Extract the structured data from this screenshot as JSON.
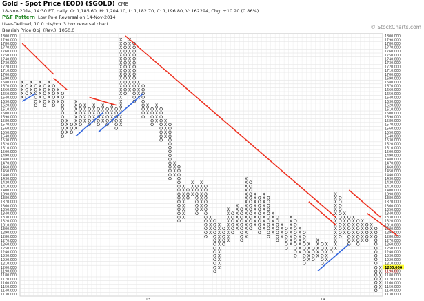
{
  "header": {
    "title": "Gold - Spot Price (EOD) ($GOLD)",
    "exchange": "CME",
    "quote": "18-Nov-2014, 14:30 ET, daily, O: 1,185.60, H: 1,204.10, L: 1,182.70, C: 1,196.80, V: 162294, Chg: +10.20 (0.86%)",
    "pattern_tag": "P&F Pattern",
    "pattern_desc": "Low Pole Reversal on 14-Nov-2014",
    "settings": "User-Defined, 10.0 pts/box 3 box reversal chart",
    "objective": "Bearish Price Obj. (Rev.): 1050.0"
  },
  "watermark": "© StockCharts.com",
  "chart_data": {
    "type": "point-and-figure",
    "box_size": 10,
    "reversal": 3,
    "ylim": [
      1130,
      1800
    ],
    "grid": true,
    "y_ticks": [
      1800,
      1790,
      1780,
      1770,
      1760,
      1750,
      1740,
      1730,
      1720,
      1710,
      1700,
      1690,
      1680,
      1670,
      1660,
      1650,
      1640,
      1630,
      1620,
      1610,
      1600,
      1590,
      1580,
      1570,
      1560,
      1550,
      1540,
      1530,
      1520,
      1510,
      1500,
      1490,
      1480,
      1470,
      1460,
      1450,
      1440,
      1430,
      1420,
      1410,
      1400,
      1390,
      1380,
      1370,
      1360,
      1350,
      1340,
      1330,
      1320,
      1310,
      1300,
      1290,
      1280,
      1270,
      1260,
      1250,
      1240,
      1230,
      1220,
      1210,
      1200,
      1190,
      1180,
      1170,
      1160,
      1150,
      1140,
      1130
    ],
    "highlight_price": 1200.0,
    "highlight_label": "1200.000",
    "last_price_label": "1196.80",
    "x_labels": [
      {
        "label": "13",
        "col": 28
      },
      {
        "label": "14",
        "col": 67
      }
    ],
    "columns": [
      {
        "type": "X",
        "from": 1640,
        "to": 1680
      },
      {
        "type": "O",
        "from": 1670,
        "to": 1640
      },
      {
        "type": "X",
        "from": 1650,
        "to": 1680
      },
      {
        "type": "O",
        "from": 1670,
        "to": 1620
      },
      {
        "type": "X",
        "from": 1630,
        "to": 1680
      },
      {
        "type": "O",
        "from": 1670,
        "to": 1620
      },
      {
        "type": "X",
        "from": 1630,
        "to": 1680
      },
      {
        "type": "O",
        "from": 1670,
        "to": 1620
      },
      {
        "type": "X",
        "from": 1630,
        "to": 1660
      },
      {
        "type": "O",
        "from": 1650,
        "to": 1540
      },
      {
        "type": "X",
        "from": 1550,
        "to": 1580
      },
      {
        "type": "O",
        "from": 1570,
        "to": 1550
      },
      {
        "type": "X",
        "from": 1560,
        "to": 1630
      },
      {
        "type": "O",
        "from": 1620,
        "to": 1570
      },
      {
        "type": "X",
        "from": 1580,
        "to": 1620
      },
      {
        "type": "O",
        "from": 1610,
        "to": 1570
      },
      {
        "type": "X",
        "from": 1580,
        "to": 1620
      },
      {
        "type": "O",
        "from": 1610,
        "to": 1570
      },
      {
        "type": "X",
        "from": 1580,
        "to": 1620
      },
      {
        "type": "O",
        "from": 1610,
        "to": 1570
      },
      {
        "type": "X",
        "from": 1580,
        "to": 1620
      },
      {
        "type": "O",
        "from": 1610,
        "to": 1560
      },
      {
        "type": "X",
        "from": 1570,
        "to": 1790
      },
      {
        "type": "O",
        "from": 1780,
        "to": 1650
      },
      {
        "type": "X",
        "from": 1660,
        "to": 1790
      },
      {
        "type": "O",
        "from": 1780,
        "to": 1630
      },
      {
        "type": "X",
        "from": 1640,
        "to": 1680
      },
      {
        "type": "O",
        "from": 1670,
        "to": 1590
      },
      {
        "type": "X",
        "from": 1600,
        "to": 1620
      },
      {
        "type": "O",
        "from": 1610,
        "to": 1570
      },
      {
        "type": "X",
        "from": 1580,
        "to": 1620
      },
      {
        "type": "O",
        "from": 1610,
        "to": 1530
      },
      {
        "type": "X",
        "from": 1540,
        "to": 1580
      },
      {
        "type": "O",
        "from": 1570,
        "to": 1430
      },
      {
        "type": "X",
        "from": 1440,
        "to": 1470
      },
      {
        "type": "O",
        "from": 1460,
        "to": 1320
      },
      {
        "type": "X",
        "from": 1330,
        "to": 1410
      },
      {
        "type": "O",
        "from": 1400,
        "to": 1380
      },
      {
        "type": "X",
        "from": 1390,
        "to": 1420
      },
      {
        "type": "O",
        "from": 1410,
        "to": 1340
      },
      {
        "type": "X",
        "from": 1350,
        "to": 1420
      },
      {
        "type": "O",
        "from": 1410,
        "to": 1280
      },
      {
        "type": "X",
        "from": 1290,
        "to": 1330
      },
      {
        "type": "O",
        "from": 1320,
        "to": 1190
      },
      {
        "type": "X",
        "from": 1200,
        "to": 1310
      },
      {
        "type": "O",
        "from": 1300,
        "to": 1260
      },
      {
        "type": "X",
        "from": 1270,
        "to": 1350
      },
      {
        "type": "O",
        "from": 1340,
        "to": 1290
      },
      {
        "type": "X",
        "from": 1300,
        "to": 1360
      },
      {
        "type": "O",
        "from": 1350,
        "to": 1270
      },
      {
        "type": "X",
        "from": 1280,
        "to": 1430
      },
      {
        "type": "O",
        "from": 1420,
        "to": 1300
      },
      {
        "type": "X",
        "from": 1310,
        "to": 1390
      },
      {
        "type": "O",
        "from": 1380,
        "to": 1290
      },
      {
        "type": "X",
        "from": 1300,
        "to": 1390
      },
      {
        "type": "O",
        "from": 1380,
        "to": 1280
      },
      {
        "type": "X",
        "from": 1290,
        "to": 1340
      },
      {
        "type": "O",
        "from": 1330,
        "to": 1270
      },
      {
        "type": "X",
        "from": 1280,
        "to": 1310
      },
      {
        "type": "O",
        "from": 1300,
        "to": 1250
      },
      {
        "type": "X",
        "from": 1260,
        "to": 1330
      },
      {
        "type": "O",
        "from": 1320,
        "to": 1230
      },
      {
        "type": "X",
        "from": 1240,
        "to": 1300
      },
      {
        "type": "O",
        "from": 1290,
        "to": 1210
      },
      {
        "type": "X",
        "from": 1220,
        "to": 1260
      },
      {
        "type": "O",
        "from": 1250,
        "to": 1220
      },
      {
        "type": "X",
        "from": 1230,
        "to": 1270
      },
      {
        "type": "O",
        "from": 1260,
        "to": 1210
      },
      {
        "type": "X",
        "from": 1220,
        "to": 1260
      },
      {
        "type": "O",
        "from": 1250,
        "to": 1240
      },
      {
        "type": "X",
        "from": 1250,
        "to": 1390
      },
      {
        "type": "O",
        "from": 1380,
        "to": 1280
      },
      {
        "type": "X",
        "from": 1290,
        "to": 1340
      },
      {
        "type": "O",
        "from": 1330,
        "to": 1260
      },
      {
        "type": "X",
        "from": 1270,
        "to": 1330
      },
      {
        "type": "O",
        "from": 1320,
        "to": 1260
      },
      {
        "type": "X",
        "from": 1270,
        "to": 1320
      },
      {
        "type": "O",
        "from": 1310,
        "to": 1270
      },
      {
        "type": "X",
        "from": 1280,
        "to": 1310
      },
      {
        "type": "O",
        "from": 1300,
        "to": 1140
      },
      {
        "type": "X",
        "from": 1150,
        "to": 1200
      }
    ],
    "trendlines": [
      {
        "color": "#ee3322",
        "from": {
          "col": 0,
          "price": 1780
        },
        "to": {
          "col": 7,
          "price": 1700
        }
      },
      {
        "color": "#ee3322",
        "from": {
          "col": 7,
          "price": 1690
        },
        "to": {
          "col": 10,
          "price": 1660
        }
      },
      {
        "color": "#ee3322",
        "from": {
          "col": 15,
          "price": 1640
        },
        "to": {
          "col": 21,
          "price": 1620
        }
      },
      {
        "color": "#ee3322",
        "from": {
          "col": 23,
          "price": 1800
        },
        "to": {
          "col": 70,
          "price": 1330
        }
      },
      {
        "color": "#ee3322",
        "from": {
          "col": 64,
          "price": 1370
        },
        "to": {
          "col": 70,
          "price": 1310
        }
      },
      {
        "color": "#ee3322",
        "from": {
          "col": 73,
          "price": 1400
        },
        "to": {
          "col": 80,
          "price": 1330
        }
      },
      {
        "color": "#ee3322",
        "from": {
          "col": 77,
          "price": 1340
        },
        "to": {
          "col": 84,
          "price": 1280
        }
      },
      {
        "color": "#3366dd",
        "from": {
          "col": 0,
          "price": 1630
        },
        "to": {
          "col": 3,
          "price": 1650
        }
      },
      {
        "color": "#3366dd",
        "from": {
          "col": 12,
          "price": 1540
        },
        "to": {
          "col": 18,
          "price": 1600
        }
      },
      {
        "color": "#3366dd",
        "from": {
          "col": 17,
          "price": 1550
        },
        "to": {
          "col": 27,
          "price": 1650
        }
      },
      {
        "color": "#3366dd",
        "from": {
          "col": 66,
          "price": 1190
        },
        "to": {
          "col": 73,
          "price": 1260
        }
      }
    ]
  }
}
